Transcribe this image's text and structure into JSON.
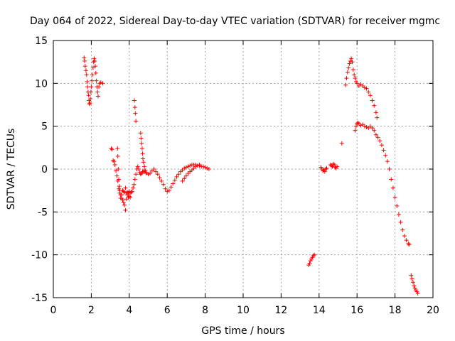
{
  "chart_data": {
    "type": "scatter",
    "title": "Day 064 of 2022, Sidereal Day-to-day VTEC variation (SDTVAR) for receiver mgmc",
    "xlabel": "GPS time / hours",
    "ylabel": "SDTVAR / TECUs",
    "xlim": [
      0,
      20
    ],
    "ylim": [
      -15,
      15
    ],
    "xticks": [
      0,
      2,
      4,
      6,
      8,
      10,
      12,
      14,
      16,
      18,
      20
    ],
    "yticks": [
      -15,
      -10,
      -5,
      0,
      5,
      10,
      15
    ],
    "xtick_labels": [
      "0",
      "2",
      "4",
      "6",
      "8",
      "10",
      "12",
      "14",
      "16",
      "18",
      "20"
    ],
    "ytick_labels": [
      "-15",
      "-10",
      "-5",
      "0",
      "5",
      "10",
      "15"
    ],
    "grid": true,
    "marker": "plus",
    "color": "#ff0000",
    "series": [
      {
        "name": "SDTVAR",
        "x": [
          1.62,
          1.65,
          1.68,
          1.72,
          1.75,
          1.78,
          1.8,
          1.83,
          1.86,
          1.88,
          1.9,
          1.93,
          1.95,
          1.98,
          2.0,
          2.03,
          2.06,
          2.09,
          2.12,
          2.15,
          2.18,
          2.21,
          2.24,
          2.27,
          2.3,
          2.33,
          2.36,
          2.4,
          2.45,
          2.5,
          2.6,
          3.05,
          3.1,
          3.15,
          3.2,
          3.25,
          3.3,
          3.35,
          3.4,
          3.45,
          3.5,
          3.55,
          3.6,
          3.65,
          3.7,
          3.75,
          3.8,
          3.85,
          3.9,
          3.95,
          4.0,
          4.05,
          4.1,
          4.15,
          4.2,
          4.25,
          4.3,
          4.35,
          4.4,
          4.45,
          4.5,
          4.55,
          4.6,
          4.65,
          4.7,
          4.75,
          4.8,
          3.38,
          3.4,
          3.42,
          3.45,
          3.48,
          3.5,
          3.55,
          3.6,
          3.65,
          3.7,
          3.75,
          3.8,
          3.85,
          3.9,
          3.95,
          4.0,
          4.05,
          4.27,
          4.3,
          4.32,
          4.35,
          4.6,
          4.62,
          4.65,
          4.68,
          4.7,
          4.72,
          4.75,
          4.8,
          4.85,
          4.9,
          4.9,
          5.0,
          5.1,
          5.2,
          5.3,
          5.4,
          5.5,
          5.6,
          5.7,
          5.8,
          5.9,
          6.0,
          6.1,
          6.2,
          6.3,
          6.4,
          6.5,
          6.6,
          6.7,
          6.8,
          6.9,
          7.0,
          7.1,
          7.2,
          7.3,
          7.4,
          7.5,
          7.6,
          7.7,
          7.8,
          7.9,
          8.0,
          8.1,
          8.2,
          6.8,
          6.9,
          7.0,
          7.1,
          7.2,
          7.3,
          7.4,
          7.5,
          7.6,
          7.7,
          13.45,
          13.5,
          13.55,
          13.6,
          13.65,
          13.7,
          13.75,
          14.1,
          14.15,
          14.2,
          14.25,
          14.3,
          14.35,
          14.4,
          14.6,
          14.65,
          14.7,
          14.75,
          14.8,
          14.85,
          14.9,
          14.95,
          15.2,
          15.4,
          15.45,
          15.5,
          15.55,
          15.6,
          15.65,
          15.7,
          15.75,
          15.8,
          15.85,
          15.9,
          15.95,
          16.0,
          16.1,
          16.2,
          16.3,
          16.4,
          16.5,
          16.6,
          16.7,
          16.8,
          16.9,
          17.0,
          17.05,
          15.9,
          15.95,
          16.0,
          16.05,
          16.1,
          16.2,
          16.3,
          16.4,
          16.5,
          16.6,
          16.7,
          16.8,
          16.9,
          17.0,
          17.1,
          17.2,
          17.3,
          17.4,
          17.5,
          17.6,
          17.7,
          17.8,
          17.9,
          18.0,
          18.1,
          18.2,
          18.3,
          18.4,
          18.5,
          18.6,
          18.7,
          18.75,
          18.85,
          18.9,
          18.95,
          19.0,
          19.05,
          19.1,
          19.15,
          19.2
        ],
        "y": [
          13.0,
          12.6,
          12.0,
          11.5,
          11.0,
          10.2,
          9.6,
          9.0,
          8.6,
          8.0,
          7.6,
          7.7,
          8.2,
          9.0,
          9.6,
          10.3,
          11.0,
          11.8,
          12.5,
          12.9,
          12.6,
          12.0,
          11.2,
          10.3,
          9.6,
          9.0,
          8.5,
          9.6,
          10.0,
          10.1,
          10.0,
          2.4,
          2.3,
          1.0,
          0.9,
          0.5,
          -0.2,
          -0.8,
          -1.4,
          -2.3,
          -2.8,
          -3.4,
          -3.0,
          -2.5,
          -2.6,
          -2.7,
          -2.2,
          -2.8,
          -2.7,
          -2.8,
          -2.6,
          -2.8,
          -2.7,
          -2.6,
          -2.2,
          -1.8,
          -1.2,
          -0.6,
          0.0,
          0.3,
          0.0,
          -0.4,
          -0.6,
          -0.5,
          -0.3,
          -0.3,
          -0.2,
          2.4,
          1.5,
          0.0,
          -1.2,
          -2.0,
          -2.5,
          -3.0,
          -3.4,
          -3.6,
          -3.9,
          -4.2,
          -4.8,
          -3.5,
          -3.0,
          -3.3,
          -3.2,
          -3.3,
          8.0,
          7.2,
          6.5,
          5.6,
          4.2,
          3.6,
          3.0,
          2.4,
          1.8,
          1.2,
          0.8,
          0.3,
          -0.2,
          -0.5,
          -0.4,
          -0.6,
          -0.5,
          -0.2,
          0.0,
          -0.3,
          -0.6,
          -1.0,
          -1.4,
          -1.8,
          -2.3,
          -2.6,
          -2.5,
          -2.1,
          -1.7,
          -1.3,
          -0.9,
          -0.6,
          -0.3,
          -0.1,
          0.1,
          0.2,
          0.3,
          0.4,
          0.5,
          0.5,
          0.5,
          0.4,
          0.4,
          0.3,
          0.3,
          0.2,
          0.1,
          0.0,
          -1.4,
          -1.1,
          -0.8,
          -0.5,
          -0.3,
          -0.1,
          0.1,
          0.3,
          0.4,
          0.5,
          -11.2,
          -11.0,
          -10.7,
          -10.5,
          -10.3,
          -10.1,
          -10.0,
          0.2,
          0.0,
          -0.2,
          -0.1,
          -0.3,
          0.0,
          0.1,
          0.5,
          0.4,
          0.3,
          0.6,
          0.5,
          0.2,
          0.1,
          0.3,
          3.0,
          9.8,
          10.6,
          11.3,
          11.8,
          12.3,
          12.6,
          12.9,
          12.5,
          11.6,
          11.0,
          10.6,
          10.2,
          10.0,
          9.7,
          9.9,
          9.7,
          9.5,
          9.4,
          9.0,
          8.6,
          8.0,
          7.4,
          6.6,
          6.0,
          4.5,
          5.0,
          5.3,
          5.4,
          5.3,
          5.1,
          5.2,
          5.0,
          4.9,
          4.8,
          5.0,
          4.8,
          4.5,
          4.0,
          3.7,
          3.3,
          2.8,
          2.2,
          1.6,
          0.9,
          0.0,
          -1.2,
          -2.2,
          -3.3,
          -4.3,
          -5.3,
          -6.2,
          -7.1,
          -7.8,
          -8.3,
          -8.7,
          -8.8,
          -12.4,
          -12.8,
          -13.2,
          -13.6,
          -13.9,
          -14.1,
          -14.3,
          -14.5
        ]
      }
    ]
  }
}
